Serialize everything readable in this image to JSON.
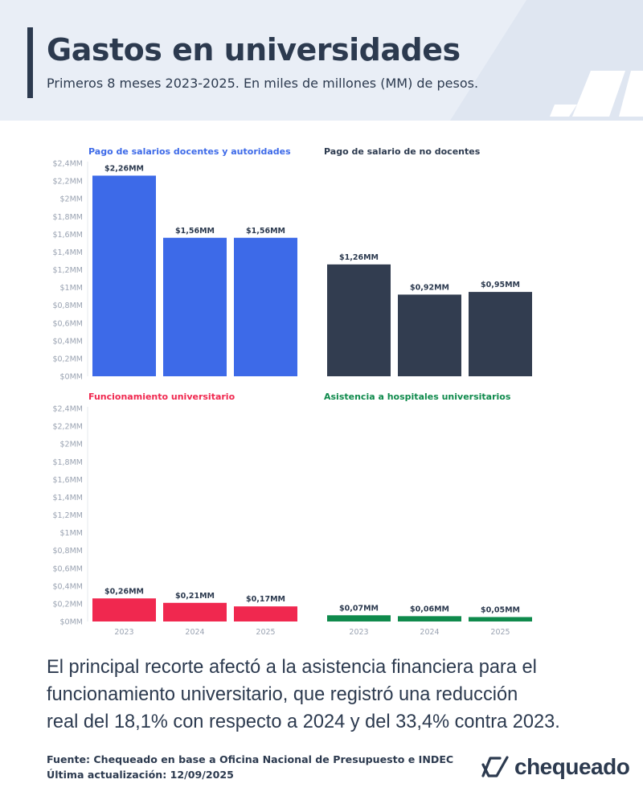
{
  "header": {
    "title": "Gastos en universidades",
    "subtitle": "Primeros 8 meses 2023-2025. En miles de millones (MM) de pesos."
  },
  "colors": {
    "header_bg": "#e9eef6",
    "text": "#2c3a4f",
    "blue": "#3d6ae8",
    "dark": "#323d50",
    "red": "#f0284f",
    "green": "#0f8a4c"
  },
  "chart_data": [
    {
      "type": "bar",
      "title": "Pago de salarios docentes y autoridades",
      "title_color": "#3d6ae8",
      "color": "#3d6ae8",
      "categories": [
        "2023",
        "2024",
        "2025"
      ],
      "values": [
        2.26,
        1.56,
        1.56
      ],
      "value_labels": [
        "$2,26MM",
        "$1,56MM",
        "$1,56MM"
      ],
      "ylim": [
        0,
        2.4
      ],
      "yticks": [
        "$0MM",
        "$0,2MM",
        "$0,4MM",
        "$0,6MM",
        "$0,8MM",
        "$1MM",
        "$1,2MM",
        "$1,4MM",
        "$1,6MM",
        "$1,8MM",
        "$2MM",
        "$2,2MM",
        "$2,4MM"
      ],
      "show_y_axis": true,
      "show_x_labels": false
    },
    {
      "type": "bar",
      "title": "Pago de salario de no docentes",
      "title_color": "#2c3a4f",
      "color": "#323d50",
      "categories": [
        "2023",
        "2024",
        "2025"
      ],
      "values": [
        1.26,
        0.92,
        0.95
      ],
      "value_labels": [
        "$1,26MM",
        "$0,92MM",
        "$0,95MM"
      ],
      "ylim": [
        0,
        2.4
      ],
      "show_y_axis": false,
      "show_x_labels": false
    },
    {
      "type": "bar",
      "title": "Funcionamiento universitario",
      "title_color": "#f0284f",
      "color": "#f0284f",
      "categories": [
        "2023",
        "2024",
        "2025"
      ],
      "values": [
        0.26,
        0.21,
        0.17
      ],
      "value_labels": [
        "$0,26MM",
        "$0,21MM",
        "$0,17MM"
      ],
      "ylim": [
        0,
        2.4
      ],
      "yticks": [
        "$0MM",
        "$0,2MM",
        "$0,4MM",
        "$0,6MM",
        "$0,8MM",
        "$1MM",
        "$1,2MM",
        "$1,4MM",
        "$1,6MM",
        "$1,8MM",
        "$2MM",
        "$2,2MM",
        "$2,4MM"
      ],
      "show_y_axis": true,
      "show_x_labels": true
    },
    {
      "type": "bar",
      "title": "Asistencia a hospitales universitarios",
      "title_color": "#0f8a4c",
      "color": "#0f8a4c",
      "categories": [
        "2023",
        "2024",
        "2025"
      ],
      "values": [
        0.07,
        0.06,
        0.05
      ],
      "value_labels": [
        "$0,07MM",
        "$0,06MM",
        "$0,05MM"
      ],
      "ylim": [
        0,
        2.4
      ],
      "show_y_axis": false,
      "show_x_labels": true
    }
  ],
  "body": {
    "line1": "El principal recorte afectó a la asistencia financiera para el",
    "line2": "funcionamiento universitario, que registró una reducción",
    "line3": "real del 18,1% con respecto a 2024 y del 33,4% contra 2023."
  },
  "footer": {
    "source": "Fuente: Chequeado en base a Oficina Nacional de Presupuesto e INDEC",
    "updated": "Última actualización: 12/09/2025"
  },
  "logo": {
    "text": "chequeado",
    "icon": "chequeado-check-icon"
  }
}
